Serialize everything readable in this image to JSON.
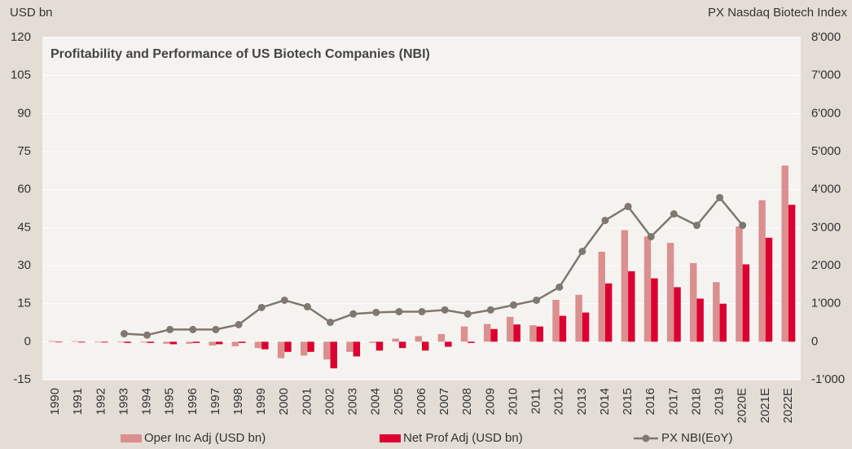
{
  "chart_data": {
    "type": "bar",
    "title": "Profitability and Performance of US Biotech Companies (NBI)",
    "y_label": "USD bn",
    "y2_label": "PX Nasdaq Biotech Index",
    "categories": [
      "1990",
      "1991",
      "1992",
      "1993",
      "1994",
      "1995",
      "1996",
      "1997",
      "1998",
      "1999",
      "2000",
      "2001",
      "2002",
      "2003",
      "2004",
      "2005",
      "2006",
      "2007",
      "2008",
      "2009",
      "2010",
      "2011",
      "2012",
      "2013",
      "2014",
      "2015",
      "2016",
      "2017",
      "2018",
      "2019",
      "2020E",
      "2021E",
      "2022E"
    ],
    "series": [
      {
        "name": "Oper Inc Adj (USD bn)",
        "type": "bar",
        "color": "#db8f8f",
        "values": [
          0.3,
          0.2,
          0,
          0,
          -0.3,
          -0.8,
          -0.8,
          -1.5,
          -1.8,
          -2.5,
          -6.5,
          -5.5,
          -7,
          -4,
          -0.5,
          1.2,
          2.2,
          3,
          6,
          7,
          9.8,
          6.5,
          16.5,
          18.5,
          35.5,
          44,
          41.5,
          39,
          31,
          23.5,
          45.5,
          55.8,
          69.5
        ]
      },
      {
        "name": "Net Prof Adj (USD bn)",
        "type": "bar",
        "color": "#dc0032",
        "values": [
          0,
          -0.3,
          -0.3,
          -0.5,
          -0.5,
          -1,
          -0.5,
          -1,
          -0.5,
          -3,
          -4,
          -4,
          -10.5,
          -5.8,
          -3.5,
          -2.5,
          -3.5,
          -2,
          -0.5,
          5,
          6.8,
          6,
          10.2,
          11.5,
          23,
          27.8,
          25,
          21.5,
          17,
          15,
          30.5,
          41,
          54
        ]
      },
      {
        "name": "PX NBI(EoY)",
        "type": "line",
        "axis": "y2",
        "color": "#7f7770",
        "values": [
          null,
          null,
          null,
          210,
          175,
          320,
          320,
          320,
          450,
          900,
          1090,
          920,
          510,
          730,
          770,
          790,
          790,
          835,
          730,
          835,
          965,
          1090,
          1435,
          2375,
          3190,
          3555,
          2760,
          3360,
          3060,
          3790,
          3060,
          null,
          null
        ]
      }
    ],
    "ylim": [
      -15,
      120
    ],
    "yticks": [
      -15,
      0,
      15,
      30,
      45,
      60,
      75,
      90,
      105,
      120
    ],
    "y2lim": [
      -1000,
      8000
    ],
    "y2ticks": [
      {
        "value": -1000,
        "label": "-1'000"
      },
      0,
      {
        "value": 1000,
        "label": "1'000"
      },
      {
        "value": 2000,
        "label": "2'000"
      },
      {
        "value": 3000,
        "label": "3'000"
      },
      {
        "value": 4000,
        "label": "4'000"
      },
      {
        "value": 5000,
        "label": "5'000"
      },
      {
        "value": 6000,
        "label": "6'000"
      },
      {
        "value": 7000,
        "label": "7'000"
      },
      {
        "value": 8000,
        "label": "8'000"
      }
    ],
    "grid": true,
    "legend": "bottom"
  }
}
